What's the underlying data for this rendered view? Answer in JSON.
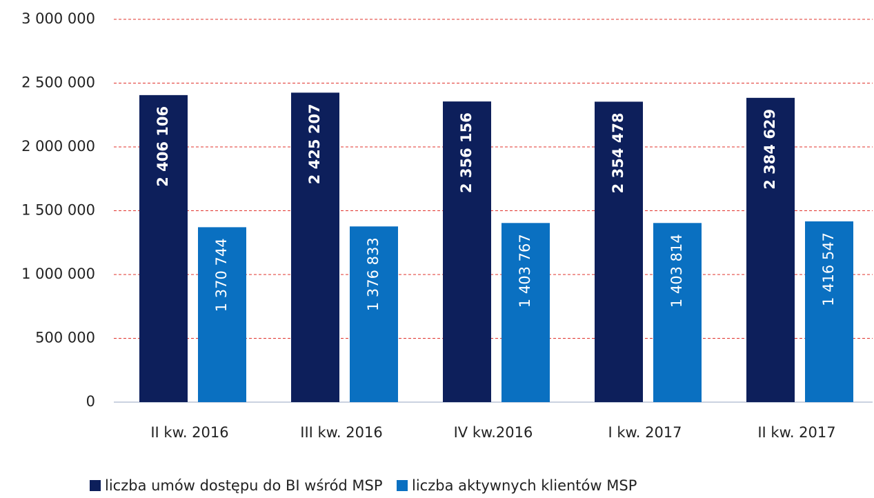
{
  "chart_data": {
    "type": "bar",
    "categories": [
      "II kw. 2016",
      "III kw. 2016",
      "IV kw.2016",
      "I kw. 2017",
      "II kw. 2017"
    ],
    "series": [
      {
        "name": "liczba umów dostępu do BI wśród MSP",
        "color": "#0d1f5b",
        "values": [
          2406106,
          2425207,
          2356156,
          2354478,
          2384629
        ],
        "value_labels": [
          "2 406 106",
          "2 425 207",
          "2 356 156",
          "2 354 478",
          "2 384 629"
        ]
      },
      {
        "name": "liczba aktywnych klientów MSP",
        "color": "#0a70c1",
        "values": [
          1370744,
          1376833,
          1403767,
          1403814,
          1416547
        ],
        "value_labels": [
          "1 370 744",
          "1 376 833",
          "1 403 767",
          "1 403 814",
          "1 416 547"
        ]
      }
    ],
    "ylim": [
      0,
      3000000
    ],
    "yticks": [
      0,
      {
        "value": 500000,
        "label": "500 000"
      },
      {
        "value": 1000000,
        "label": "1 000 000"
      },
      {
        "value": 1500000,
        "label": "1 500 000"
      },
      {
        "value": 2000000,
        "label": "2 000 000"
      },
      {
        "value": 2500000,
        "label": "2 500 000"
      },
      {
        "value": 3000000,
        "label": "3 000 000"
      }
    ],
    "grid": true,
    "legend": "bottom"
  }
}
